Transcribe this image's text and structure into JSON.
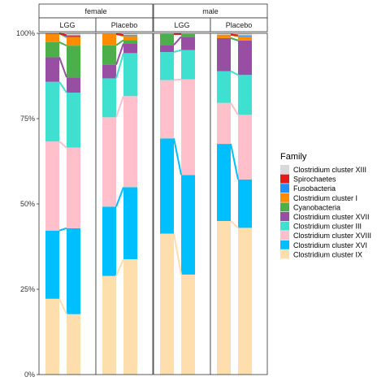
{
  "chart_data": {
    "type": "bar",
    "stacked": true,
    "normalized": true,
    "ylim": [
      0,
      1
    ],
    "y_ticks": [
      0,
      0.25,
      0.5,
      0.75,
      1.0
    ],
    "y_tick_labels": [
      "0%",
      "25%",
      "50%",
      "75%",
      "100%"
    ],
    "grid": false,
    "facets": {
      "row1": [
        "female",
        "male"
      ],
      "row2": [
        "LGG",
        "Placebo",
        "LGG",
        "Placebo"
      ]
    },
    "legend": {
      "title": "Family",
      "position": "right",
      "entries": [
        {
          "name": "Clostridium cluster XIII",
          "color": "#D9D9D9"
        },
        {
          "name": "Spirochaetes",
          "color": "#E41A1C"
        },
        {
          "name": "Fusobacteria",
          "color": "#1E90FF"
        },
        {
          "name": "Clostridium cluster I",
          "color": "#FF8C00"
        },
        {
          "name": "Cyanobacteria",
          "color": "#4DAF4A"
        },
        {
          "name": "Clostridium cluster XVII",
          "color": "#984EA3"
        },
        {
          "name": "Clostridium cluster III",
          "color": "#40E0D0"
        },
        {
          "name": "Clostridium cluster XVIII",
          "color": "#FFC0CB"
        },
        {
          "name": "Clostridium cluster XVI",
          "color": "#00BFFF"
        },
        {
          "name": "Clostridium cluster IX",
          "color": "#FFDEAD"
        }
      ]
    },
    "stack_order_bottom_to_top": [
      "Clostridium cluster IX",
      "Clostridium cluster XVI",
      "Clostridium cluster XVIII",
      "Clostridium cluster III",
      "Clostridium cluster XVII",
      "Cyanobacteria",
      "Clostridium cluster I",
      "Fusobacteria",
      "Spirochaetes",
      "Clostridium cluster XIII"
    ],
    "panels": [
      {
        "sex": "female",
        "treatment": "LGG",
        "bars": [
          {
            "values": [
              0.222,
              0.2,
              0.261,
              0.175,
              0.072,
              0.044,
              0.026,
              0.0,
              0.0,
              0.0
            ]
          },
          {
            "values": [
              0.177,
              0.252,
              0.236,
              0.161,
              0.045,
              0.093,
              0.024,
              0.003,
              0.003,
              0.006
            ]
          }
        ]
      },
      {
        "sex": "female",
        "treatment": "Placebo",
        "bars": [
          {
            "values": [
              0.289,
              0.203,
              0.262,
              0.114,
              0.04,
              0.057,
              0.033,
              0.0,
              0.0,
              0.002
            ]
          },
          {
            "values": [
              0.338,
              0.211,
              0.267,
              0.126,
              0.028,
              0.01,
              0.012,
              0.003,
              0.0,
              0.005
            ]
          }
        ]
      },
      {
        "sex": "male",
        "treatment": "LGG",
        "bars": [
          {
            "values": [
              0.413,
              0.279,
              0.171,
              0.082,
              0.021,
              0.032,
              0.0,
              0.0,
              0.0,
              0.002
            ]
          },
          {
            "values": [
              0.293,
              0.292,
              0.28,
              0.086,
              0.039,
              0.008,
              0.0,
              0.0,
              0.0,
              0.002
            ]
          }
        ]
      },
      {
        "sex": "male",
        "treatment": "Placebo",
        "bars": [
          {
            "values": [
              0.45,
              0.226,
              0.12,
              0.093,
              0.097,
              0.0,
              0.01,
              0.0,
              0.0,
              0.004
            ]
          },
          {
            "values": [
              0.43,
              0.142,
              0.189,
              0.117,
              0.101,
              0.0,
              0.012,
              0.003,
              0.0,
              0.006
            ]
          }
        ]
      }
    ]
  }
}
